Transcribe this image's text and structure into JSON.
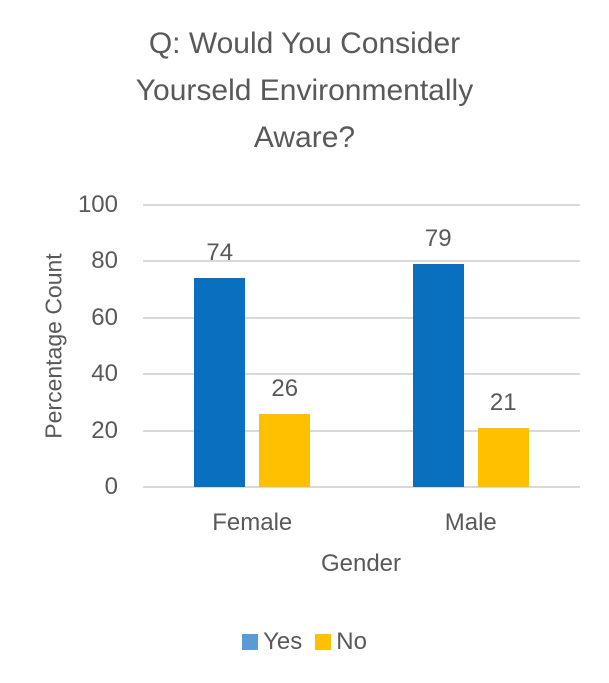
{
  "chart": {
    "title_lines": [
      "Q: Would You Consider",
      "Yourseld Environmentally",
      "Aware?"
    ],
    "title_color": "#595959",
    "text_color": "#595959",
    "gridline_color": "#D9D9D9",
    "background_color": "#FFFFFF",
    "legend": {
      "items": [
        {
          "label": "Yes",
          "marker_color": "#5B9BD5"
        },
        {
          "label": "No",
          "marker_color": "#FFC000"
        }
      ]
    }
  },
  "chart_data": {
    "type": "bar",
    "title": "Q: Would You Consider Yourseld Environmentally Aware?",
    "categories": [
      "Female",
      "Male"
    ],
    "series": [
      {
        "name": "Yes",
        "values": [
          74,
          79
        ],
        "color": "#0970C0"
      },
      {
        "name": "No",
        "values": [
          26,
          21
        ],
        "color": "#FFC000"
      }
    ],
    "xlabel": "Gender",
    "ylabel": "Percentage Count",
    "ylim": [
      0,
      100
    ],
    "yticks": [
      0,
      20,
      40,
      60,
      80,
      100
    ],
    "grid": true,
    "data_labels": true,
    "legend_position": "bottom"
  }
}
